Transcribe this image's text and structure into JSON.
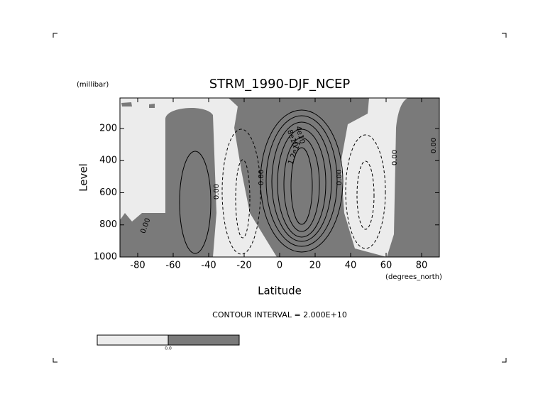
{
  "chart_data": {
    "type": "contour",
    "title": "STRM_1990-DJF_NCEP",
    "x_label": "Latitude",
    "x_unit": "(degrees_north)",
    "y_label": "Level",
    "y_unit": "(millibar)",
    "note": "CONTOUR INTERVAL = 2.000E+10",
    "xlim": [
      -90,
      90
    ],
    "xticks": [
      -80,
      -60,
      -40,
      -20,
      0,
      20,
      40,
      60,
      80
    ],
    "ylim": [
      1000,
      10
    ],
    "yticks": [
      200,
      400,
      600,
      800,
      1000
    ],
    "contour_labels": [
      "0.00",
      "0.00",
      "0.00",
      "0.00",
      "0.00",
      "0.00",
      "4e10",
      "8e10",
      "1.2e11"
    ],
    "colors": {
      "below": "#ececec",
      "above": "#7a7a7a"
    },
    "colorbar_labels": [
      "0.0"
    ]
  }
}
